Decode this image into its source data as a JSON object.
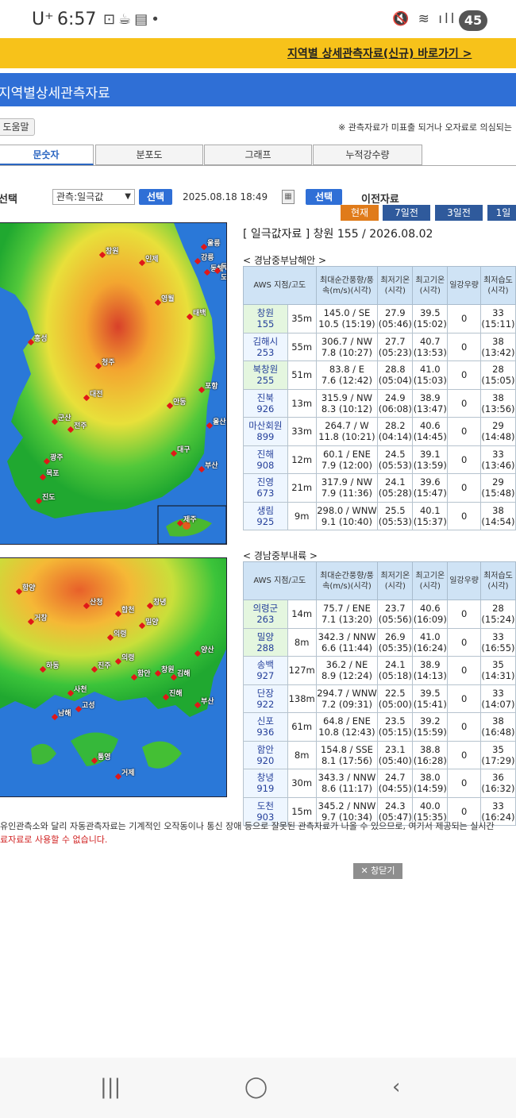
{
  "status": {
    "carrier": "U⁺",
    "time": "6:57",
    "battery": "45"
  },
  "banner": {
    "link": "지역별 상세관측자료(신규) 바로가기 >"
  },
  "header": {
    "title": "지역별상세관측자료"
  },
  "toolbar": {
    "help": "도움말",
    "notice": "※ 관측자료가 미표출 되거나 오자료로 의심되는"
  },
  "tabs": [
    "문숫자",
    "분포도",
    "그래프",
    "누적강수량"
  ],
  "controls": {
    "select_label": "선택",
    "select_value": "관측:일극값",
    "select_btn": "선택",
    "datetime": "2025.08.18 18:49",
    "select_btn2": "선택",
    "prev": "이전자료"
  },
  "periods": [
    "현재",
    "7일전",
    "3일전",
    "1일"
  ],
  "caption": "[ 일극값자료 ] 창원 155 / 2026.08.02",
  "section1": {
    "title": "< 경남중부남해안 >",
    "headers": [
      "AWS 지점/고도",
      "최대순간풍향/풍속(m/s)(시각)",
      "최저기온(시각)",
      "최고기온(시각)",
      "일강우량",
      "최저습도(시각)"
    ],
    "rows": [
      {
        "name": "창원",
        "id": "155",
        "alt": "35m",
        "wind1": "145.0 / SE",
        "wind2": "10.5 (15:19)",
        "tmin": "27.9",
        "tmin_t": "(05:46)",
        "tmax": "39.5",
        "tmax_t": "(15:02)",
        "rain": "0",
        "hum": "33",
        "hum_t": "(15:11)",
        "green": true
      },
      {
        "name": "김해시",
        "id": "253",
        "alt": "55m",
        "wind1": "306.7 / NW",
        "wind2": "7.8 (10:27)",
        "tmin": "27.7",
        "tmin_t": "(05:23)",
        "tmax": "40.7",
        "tmax_t": "(13:53)",
        "rain": "0",
        "hum": "38",
        "hum_t": "(13:42)",
        "green": false
      },
      {
        "name": "북창원",
        "id": "255",
        "alt": "51m",
        "wind1": "83.8 / E",
        "wind2": "7.6 (12:42)",
        "tmin": "28.8",
        "tmin_t": "(05:04)",
        "tmax": "41.0",
        "tmax_t": "(15:03)",
        "rain": "0",
        "hum": "28",
        "hum_t": "(15:05)",
        "green": true
      },
      {
        "name": "진북",
        "id": "926",
        "alt": "13m",
        "wind1": "315.9 / NW",
        "wind2": "8.3 (10:12)",
        "tmin": "24.9",
        "tmin_t": "(06:08)",
        "tmax": "38.9",
        "tmax_t": "(13:47)",
        "rain": "0",
        "hum": "38",
        "hum_t": "(13:56)",
        "green": false
      },
      {
        "name": "마산회원",
        "id": "899",
        "alt": "33m",
        "wind1": "264.7 / W",
        "wind2": "11.8 (10:21)",
        "tmin": "28.2",
        "tmin_t": "(04:14)",
        "tmax": "40.6",
        "tmax_t": "(14:45)",
        "rain": "0",
        "hum": "29",
        "hum_t": "(14:48)",
        "green": false
      },
      {
        "name": "진해",
        "id": "908",
        "alt": "12m",
        "wind1": "60.1 / ENE",
        "wind2": "7.9 (12:00)",
        "tmin": "24.5",
        "tmin_t": "(05:53)",
        "tmax": "39.1",
        "tmax_t": "(13:59)",
        "rain": "0",
        "hum": "33",
        "hum_t": "(13:46)",
        "green": false
      },
      {
        "name": "진영",
        "id": "673",
        "alt": "21m",
        "wind1": "317.9 / NW",
        "wind2": "7.9 (11:36)",
        "tmin": "24.1",
        "tmin_t": "(05:28)",
        "tmax": "39.6",
        "tmax_t": "(15:47)",
        "rain": "0",
        "hum": "29",
        "hum_t": "(15:48)",
        "green": false
      },
      {
        "name": "생림",
        "id": "925",
        "alt": "9m",
        "wind1": "298.0 / WNW",
        "wind2": "9.1 (10:40)",
        "tmin": "25.5",
        "tmin_t": "(05:53)",
        "tmax": "40.1",
        "tmax_t": "(15:37)",
        "rain": "0",
        "hum": "38",
        "hum_t": "(14:54)",
        "green": false
      }
    ]
  },
  "section2": {
    "title": "< 경남중부내륙 >",
    "headers": [
      "AWS 지점/고도",
      "최대순간풍향/풍속(m/s)(시각)",
      "최저기온(시각)",
      "최고기온(시각)",
      "일강우량",
      "최저습도(시각)"
    ],
    "rows": [
      {
        "name": "의령군",
        "id": "263",
        "alt": "14m",
        "wind1": "75.7 / ENE",
        "wind2": "7.1 (13:20)",
        "tmin": "23.7",
        "tmin_t": "(05:56)",
        "tmax": "40.6",
        "tmax_t": "(16:09)",
        "rain": "0",
        "hum": "28",
        "hum_t": "(15:24)",
        "green": true
      },
      {
        "name": "밀양",
        "id": "288",
        "alt": "8m",
        "wind1": "342.3 / NNW",
        "wind2": "6.6 (11:44)",
        "tmin": "26.9",
        "tmin_t": "(05:35)",
        "tmax": "41.0",
        "tmax_t": "(16:24)",
        "rain": "0",
        "hum": "33",
        "hum_t": "(16:55)",
        "green": true
      },
      {
        "name": "송백",
        "id": "927",
        "alt": "127m",
        "wind1": "36.2 / NE",
        "wind2": "8.9 (12:24)",
        "tmin": "24.1",
        "tmin_t": "(05:18)",
        "tmax": "38.9",
        "tmax_t": "(14:13)",
        "rain": "0",
        "hum": "35",
        "hum_t": "(14:31)",
        "green": false
      },
      {
        "name": "단장",
        "id": "922",
        "alt": "138m",
        "wind1": "294.7 / WNW",
        "wind2": "7.2 (09:31)",
        "tmin": "22.5",
        "tmin_t": "(05:00)",
        "tmax": "39.5",
        "tmax_t": "(15:41)",
        "rain": "0",
        "hum": "33",
        "hum_t": "(14:07)",
        "green": false
      },
      {
        "name": "신포",
        "id": "936",
        "alt": "61m",
        "wind1": "64.8 / ENE",
        "wind2": "10.8 (12:43)",
        "tmin": "23.5",
        "tmin_t": "(05:15)",
        "tmax": "39.2",
        "tmax_t": "(15:59)",
        "rain": "0",
        "hum": "38",
        "hum_t": "(16:48)",
        "green": false
      },
      {
        "name": "함안",
        "id": "920",
        "alt": "8m",
        "wind1": "154.8 / SSE",
        "wind2": "8.1 (17:56)",
        "tmin": "23.1",
        "tmin_t": "(05:40)",
        "tmax": "38.8",
        "tmax_t": "(16:28)",
        "rain": "0",
        "hum": "35",
        "hum_t": "(17:29)",
        "green": false
      },
      {
        "name": "창녕",
        "id": "919",
        "alt": "30m",
        "wind1": "343.3 / NNW",
        "wind2": "8.6 (11:17)",
        "tmin": "24.7",
        "tmin_t": "(04:55)",
        "tmax": "38.0",
        "tmax_t": "(14:59)",
        "rain": "0",
        "hum": "36",
        "hum_t": "(16:32)",
        "green": false
      },
      {
        "name": "도천",
        "id": "903",
        "alt": "15m",
        "wind1": "345.2 / NNW",
        "wind2": "9.7 (10:34)",
        "tmin": "24.3",
        "tmin_t": "(05:47)",
        "tmax": "40.0",
        "tmax_t": "(15:35)",
        "rain": "0",
        "hum": "33",
        "hum_t": "(16:24)",
        "green": false
      }
    ]
  },
  "map1_labels": [
    "창원",
    "인제",
    "강릉",
    "동해",
    "울릉",
    "독도",
    "영월",
    "태백",
    "청주",
    "대전",
    "안동",
    "대구",
    "전주",
    "광주",
    "목포",
    "부산",
    "울산",
    "진도",
    "제주",
    "포항",
    "홍성",
    "군산"
  ],
  "map2_labels": [
    "함양",
    "산청",
    "거창",
    "합천",
    "창녕",
    "밀양",
    "의령",
    "진주",
    "사천",
    "남해",
    "통영",
    "거제",
    "김해",
    "부산",
    "양산",
    "창원",
    "진해",
    "하동",
    "고성",
    "의령",
    "함안"
  ],
  "warning": {
    "line1": "유인관측소와 달리 자동관측자료는 기계적인 오작동이나 통신 장애 등으로 잘못된 관측자료가 나올 수 있으므로, 여기서 제공되는 실시간",
    "line2": "료자료로 사용할 수 없습니다."
  },
  "close_btn": "✕ 창닫기"
}
